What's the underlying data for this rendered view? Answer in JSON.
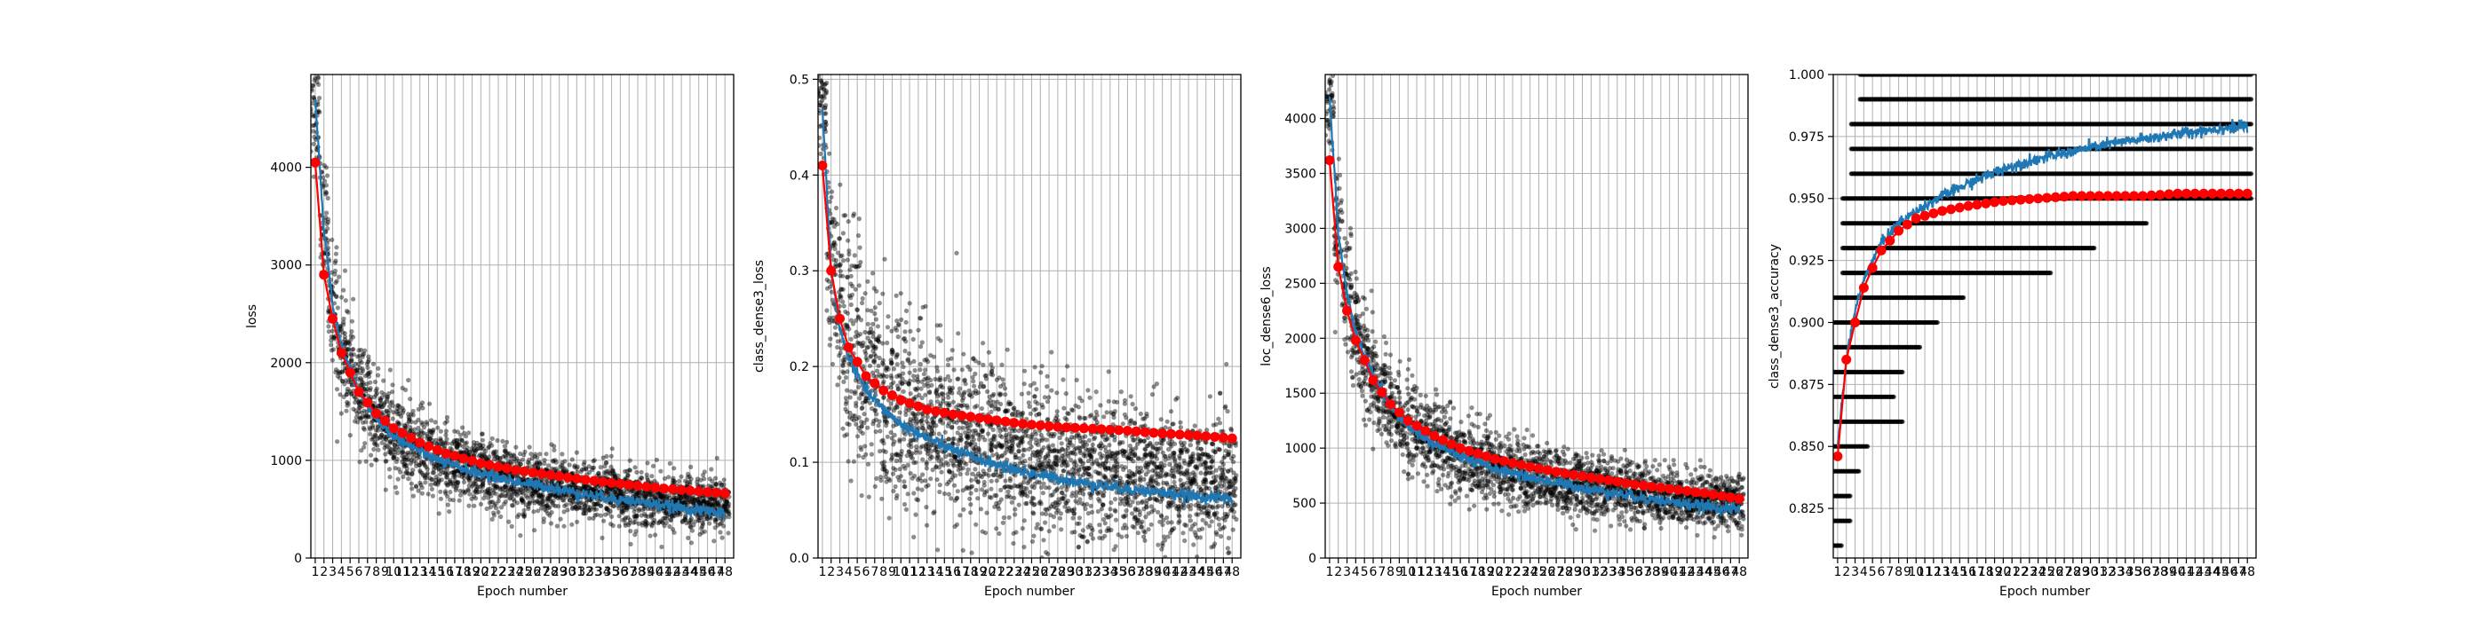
{
  "colors": {
    "scatter": "#000000",
    "train_line": "#1f77b4",
    "val_line": "#ff0000",
    "grid": "#b0b0b0"
  },
  "chart_data": [
    {
      "type": "line",
      "xlabel": "Epoch number",
      "ylabel": "loss",
      "xlim": [
        0.5,
        49
      ],
      "ylim": [
        0,
        4950
      ],
      "yticks": [
        0,
        1000,
        2000,
        3000,
        4000
      ],
      "ytick_labels": [
        "0",
        "1000",
        "2000",
        "3000",
        "4000"
      ],
      "grid": true,
      "x_ticks": {
        "from": 1,
        "to": 48
      },
      "series": [
        {
          "kind": "scatter",
          "color": "#000000",
          "x": [
            1,
            2,
            3,
            4,
            6,
            8,
            10,
            13,
            16,
            20,
            24,
            28,
            32,
            36,
            40,
            44,
            48
          ],
          "y": [
            4700,
            3400,
            2600,
            2150,
            1700,
            1430,
            1250,
            1100,
            980,
            870,
            790,
            730,
            680,
            640,
            600,
            570,
            540
          ],
          "spread": [
            600,
            600,
            550,
            500,
            450,
            420,
            400,
            380,
            350,
            320,
            300,
            290,
            280,
            270,
            260,
            250,
            240
          ]
        },
        {
          "kind": "line",
          "color": "#1f77b4",
          "x": [
            1,
            2,
            3,
            4,
            6,
            8,
            10,
            13,
            16,
            20,
            24,
            28,
            32,
            36,
            40,
            44,
            48
          ],
          "y": [
            4700,
            3350,
            2600,
            2150,
            1700,
            1430,
            1250,
            1090,
            970,
            860,
            780,
            720,
            650,
            600,
            550,
            500,
            460
          ]
        },
        {
          "kind": "line-markers",
          "color": "#ff0000",
          "x": [
            1,
            2,
            3,
            4,
            6,
            8,
            10,
            13,
            16,
            20,
            24,
            28,
            32,
            36,
            40,
            44,
            48
          ],
          "y": [
            4050,
            2900,
            2450,
            2100,
            1700,
            1480,
            1330,
            1180,
            1070,
            970,
            900,
            850,
            800,
            760,
            720,
            690,
            660
          ]
        }
      ]
    },
    {
      "type": "line",
      "xlabel": "Epoch number",
      "ylabel": "class_dense3_loss",
      "xlim": [
        0.5,
        49
      ],
      "ylim": [
        0,
        0.505
      ],
      "yticks": [
        0,
        0.1,
        0.2,
        0.3,
        0.4,
        0.5
      ],
      "ytick_labels": [
        "0.0",
        "0.1",
        "0.2",
        "0.3",
        "0.4",
        "0.5"
      ],
      "grid": true,
      "x_ticks": {
        "from": 1,
        "to": 48
      },
      "series": [
        {
          "kind": "scatter",
          "color": "#000000",
          "x": [
            1,
            2,
            3,
            4,
            6,
            8,
            10,
            13,
            16,
            20,
            24,
            28,
            32,
            36,
            40,
            44,
            48
          ],
          "y": [
            0.48,
            0.32,
            0.26,
            0.23,
            0.19,
            0.17,
            0.155,
            0.14,
            0.13,
            0.12,
            0.11,
            0.1,
            0.095,
            0.09,
            0.085,
            0.08,
            0.075
          ],
          "spread": [
            0.06,
            0.09,
            0.1,
            0.1,
            0.1,
            0.09,
            0.085,
            0.08,
            0.08,
            0.075,
            0.07,
            0.07,
            0.065,
            0.065,
            0.06,
            0.06,
            0.06
          ]
        },
        {
          "kind": "line",
          "color": "#1f77b4",
          "x": [
            1,
            2,
            3,
            4,
            6,
            8,
            10,
            13,
            16,
            20,
            24,
            28,
            32,
            36,
            40,
            44,
            48
          ],
          "y": [
            0.47,
            0.3,
            0.24,
            0.21,
            0.175,
            0.155,
            0.14,
            0.125,
            0.113,
            0.1,
            0.09,
            0.083,
            0.077,
            0.072,
            0.068,
            0.064,
            0.062
          ]
        },
        {
          "kind": "line-markers",
          "color": "#ff0000",
          "x": [
            1,
            2,
            3,
            4,
            6,
            8,
            10,
            13,
            16,
            20,
            24,
            28,
            32,
            36,
            40,
            44,
            48
          ],
          "y": [
            0.41,
            0.3,
            0.25,
            0.22,
            0.19,
            0.175,
            0.165,
            0.155,
            0.15,
            0.145,
            0.14,
            0.137,
            0.135,
            0.133,
            0.13,
            0.128,
            0.125
          ]
        }
      ]
    },
    {
      "type": "line",
      "xlabel": "Epoch number",
      "ylabel": "loc_dense6_loss",
      "xlim": [
        0.5,
        49
      ],
      "ylim": [
        0,
        4400
      ],
      "yticks": [
        0,
        500,
        1000,
        1500,
        2000,
        2500,
        3000,
        3500,
        4000
      ],
      "ytick_labels": [
        "0",
        "500",
        "1000",
        "1500",
        "2000",
        "2500",
        "3000",
        "3500",
        "4000"
      ],
      "grid": true,
      "x_ticks": {
        "from": 1,
        "to": 48
      },
      "series": [
        {
          "kind": "scatter",
          "color": "#000000",
          "x": [
            1,
            2,
            3,
            4,
            6,
            8,
            10,
            13,
            16,
            20,
            24,
            28,
            32,
            36,
            40,
            44,
            48
          ],
          "y": [
            4200,
            3000,
            2450,
            2050,
            1650,
            1350,
            1200,
            1050,
            930,
            830,
            750,
            690,
            640,
            600,
            560,
            530,
            500
          ],
          "spread": [
            500,
            550,
            520,
            480,
            430,
            400,
            370,
            340,
            310,
            290,
            270,
            260,
            250,
            240,
            230,
            220,
            210
          ]
        },
        {
          "kind": "line",
          "color": "#1f77b4",
          "x": [
            1,
            2,
            3,
            4,
            6,
            8,
            10,
            13,
            16,
            20,
            24,
            28,
            32,
            36,
            40,
            44,
            48
          ],
          "y": [
            4200,
            2950,
            2400,
            2050,
            1650,
            1380,
            1200,
            1040,
            920,
            810,
            730,
            670,
            610,
            560,
            510,
            470,
            440
          ]
        },
        {
          "kind": "line-markers",
          "color": "#ff0000",
          "x": [
            1,
            2,
            3,
            4,
            6,
            8,
            10,
            13,
            16,
            20,
            24,
            28,
            32,
            36,
            40,
            44,
            48
          ],
          "y": [
            3620,
            2650,
            2250,
            1980,
            1620,
            1400,
            1250,
            1110,
            1000,
            900,
            830,
            770,
            720,
            670,
            630,
            590,
            540
          ]
        }
      ]
    },
    {
      "type": "line",
      "xlabel": "Epoch number",
      "ylabel": "class_dense3_accuracy",
      "xlim": [
        0.5,
        49
      ],
      "ylim": [
        0.805,
        1.0
      ],
      "yticks": [
        0.825,
        0.85,
        0.875,
        0.9,
        0.925,
        0.95,
        0.975,
        1.0
      ],
      "ytick_labels": [
        "0.825",
        "0.850",
        "0.875",
        "0.900",
        "0.925",
        "0.950",
        "0.975",
        "1.000"
      ],
      "grid": true,
      "x_ticks": {
        "from": 1,
        "to": 48
      },
      "series": [
        {
          "kind": "scatter-levels",
          "color": "#000000",
          "levels": [
            0.81,
            0.82,
            0.83,
            0.84,
            0.85,
            0.86,
            0.87,
            0.88,
            0.89,
            0.9,
            0.91,
            0.92,
            0.93,
            0.94,
            0.95,
            0.96,
            0.97,
            0.98,
            0.99,
            1.0
          ],
          "start_epoch": [
            1,
            1,
            1,
            1,
            1,
            1,
            1,
            1,
            1,
            1,
            1,
            2,
            2,
            2,
            2,
            3,
            3,
            3,
            4,
            4
          ],
          "end_epoch": [
            1,
            2,
            2,
            3,
            4,
            8,
            7,
            8,
            10,
            12,
            15,
            25,
            30,
            36,
            48,
            48,
            48,
            48,
            48,
            48
          ]
        },
        {
          "kind": "line",
          "color": "#1f77b4",
          "x": [
            1,
            2,
            3,
            4,
            5,
            6,
            8,
            10,
            13,
            16,
            20,
            24,
            28,
            32,
            36,
            40,
            44,
            48
          ],
          "y": [
            0.85,
            0.885,
            0.905,
            0.917,
            0.925,
            0.932,
            0.94,
            0.945,
            0.951,
            0.956,
            0.962,
            0.966,
            0.969,
            0.972,
            0.974,
            0.976,
            0.978,
            0.979
          ]
        },
        {
          "kind": "line-markers",
          "color": "#ff0000",
          "x": [
            1,
            2,
            3,
            4,
            5,
            6,
            8,
            10,
            13,
            16,
            20,
            24,
            28,
            32,
            36,
            40,
            44,
            48
          ],
          "y": [
            0.846,
            0.885,
            0.9,
            0.914,
            0.922,
            0.929,
            0.937,
            0.942,
            0.945,
            0.947,
            0.949,
            0.95,
            0.951,
            0.951,
            0.951,
            0.952,
            0.952,
            0.952
          ]
        }
      ]
    }
  ]
}
